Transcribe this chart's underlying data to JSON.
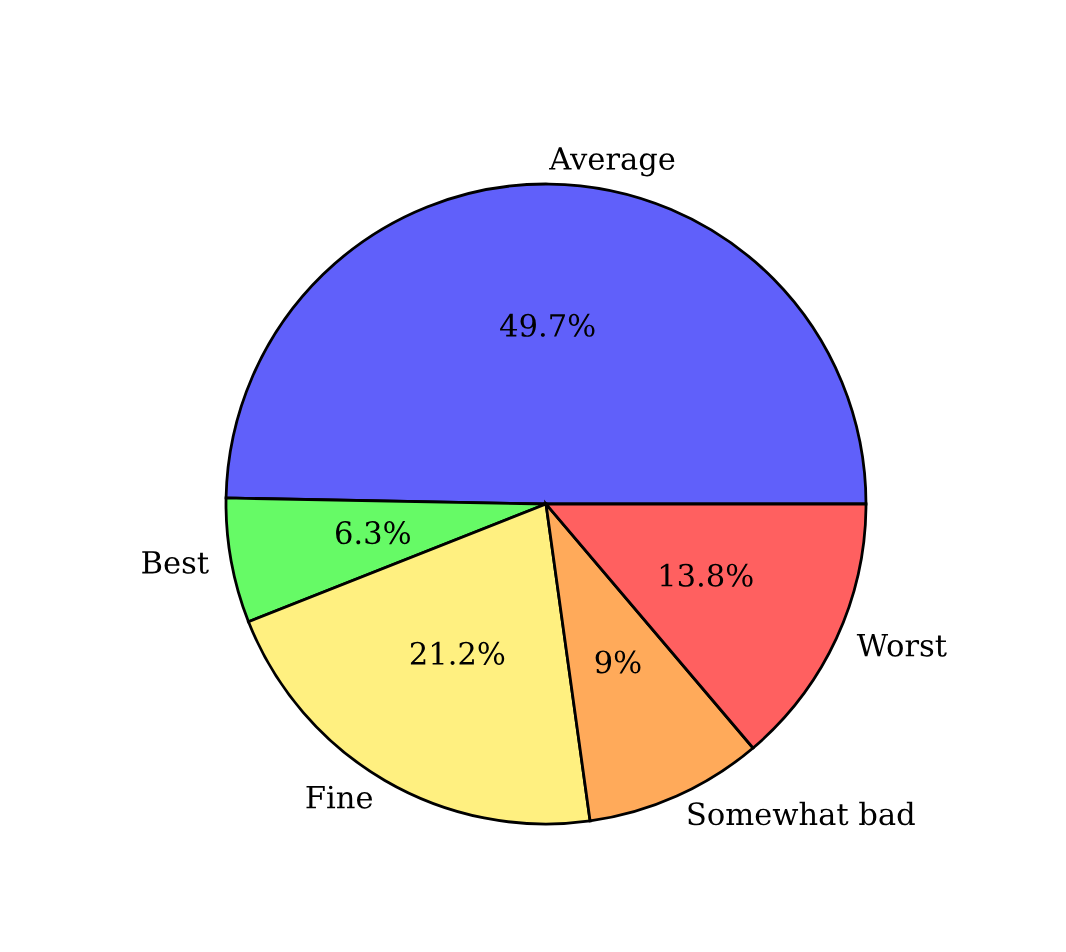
{
  "chart_data": {
    "type": "pie",
    "categories": [
      "Average",
      "Best",
      "Fine",
      "Somewhat bad",
      "Worst"
    ],
    "values": [
      49.7,
      6.3,
      21.2,
      9,
      13.8
    ],
    "value_labels": [
      "49.7%",
      "6.3%",
      "21.2%",
      "9%",
      "13.8%"
    ],
    "colors": [
      "#6060fa",
      "#66fa66",
      "#fff080",
      "#ffaa5a",
      "#ff6060"
    ],
    "legend": false
  }
}
